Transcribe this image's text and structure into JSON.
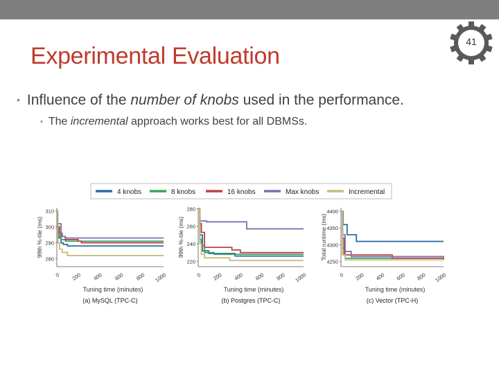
{
  "slide": {
    "title": "Experimental Evaluation",
    "number": "41",
    "bullet1": {
      "pre": "Influence of the ",
      "em": "number of knobs",
      "post": " used in the performance."
    },
    "bullet2": {
      "pre": "The ",
      "em": "incremental",
      "post": " approach works best for all DBMSs."
    }
  },
  "colors": {
    "title": "#c0392b",
    "topbar": "#7f7f7f",
    "gear": "#595959"
  },
  "legend": [
    {
      "name": "4 knobs",
      "color": "#2c6da6"
    },
    {
      "name": "8 knobs",
      "color": "#3aa35b"
    },
    {
      "name": "16 knobs",
      "color": "#b94444"
    },
    {
      "name": "Max knobs",
      "color": "#7a6fb0"
    },
    {
      "name": "Incremental",
      "color": "#c8bc7a"
    }
  ],
  "chart_data": [
    {
      "type": "line",
      "caption": "(a) MySQL (TPC-C)",
      "xlabel": "Tuning time (minutes)",
      "ylabel": "99th %-tile (ms)",
      "xlim": [
        0,
        1000
      ],
      "ylim": [
        275,
        312
      ],
      "xticks": [
        "0",
        "200",
        "400",
        "600",
        "800",
        "1000"
      ],
      "yticks": [
        {
          "v": 310,
          "t": "310"
        },
        {
          "v": 300,
          "t": "300"
        },
        {
          "v": 290,
          "t": "290"
        },
        {
          "v": 280,
          "t": "280"
        }
      ],
      "series": [
        {
          "name": "4 knobs",
          "x": [
            0,
            10,
            20,
            40,
            60,
            100,
            1000
          ],
          "y": [
            310,
            300,
            293,
            290,
            289,
            288,
            288
          ]
        },
        {
          "name": "8 knobs",
          "x": [
            0,
            10,
            25,
            40,
            80,
            1000
          ],
          "y": [
            310,
            298,
            294,
            292,
            291,
            291
          ]
        },
        {
          "name": "16 knobs",
          "x": [
            0,
            10,
            25,
            50,
            80,
            200,
            230,
            1000
          ],
          "y": [
            310,
            300,
            296,
            294,
            292,
            291,
            290,
            290
          ]
        },
        {
          "name": "Max knobs",
          "x": [
            0,
            10,
            40,
            80,
            1000
          ],
          "y": [
            310,
            302,
            294,
            293,
            293
          ]
        },
        {
          "name": "Incremental",
          "x": [
            0,
            10,
            25,
            50,
            100,
            1000
          ],
          "y": [
            310,
            290,
            286,
            284,
            282,
            282
          ]
        }
      ]
    },
    {
      "type": "line",
      "caption": "(b) Postgres (TPC-C)",
      "xlabel": "Tuning time (minutes)",
      "ylabel": "99th %-tile (ms)",
      "xlim": [
        0,
        1000
      ],
      "ylim": [
        214,
        281
      ],
      "xticks": [
        "0",
        "200",
        "400",
        "600",
        "800",
        "1000"
      ],
      "yticks": [
        {
          "v": 280,
          "t": "280"
        },
        {
          "v": 260,
          "t": "260"
        },
        {
          "v": 240,
          "t": "240"
        },
        {
          "v": 220,
          "t": "220"
        }
      ],
      "series": [
        {
          "name": "4 knobs",
          "x": [
            0,
            15,
            40,
            100,
            350,
            1000
          ],
          "y": [
            280,
            250,
            232,
            229,
            226,
            226
          ]
        },
        {
          "name": "8 knobs",
          "x": [
            0,
            15,
            30,
            60,
            150,
            1000
          ],
          "y": [
            280,
            245,
            238,
            230,
            228,
            228
          ]
        },
        {
          "name": "16 knobs",
          "x": [
            0,
            15,
            30,
            60,
            320,
            400,
            1000
          ],
          "y": [
            280,
            263,
            253,
            236,
            233,
            230,
            230
          ]
        },
        {
          "name": "Max knobs",
          "x": [
            0,
            15,
            80,
            460,
            1000
          ],
          "y": [
            280,
            266,
            265,
            257,
            257
          ]
        },
        {
          "name": "Incremental",
          "x": [
            0,
            15,
            30,
            60,
            300,
            1000
          ],
          "y": [
            280,
            240,
            228,
            224,
            221,
            221
          ]
        }
      ]
    },
    {
      "type": "line",
      "caption": "(c) Vector (TPC-H)",
      "xlabel": "Tuning time (minutes)",
      "ylabel": "Total runtime (ms)",
      "xlim": [
        0,
        1000
      ],
      "ylim": [
        4235,
        4410
      ],
      "xticks": [
        "0",
        "200",
        "400",
        "600",
        "800",
        "1000"
      ],
      "yticks": [
        {
          "v": 4400,
          "t": "4400"
        },
        {
          "v": 4350,
          "t": "4350"
        },
        {
          "v": 4300,
          "t": "4300"
        },
        {
          "v": 4250,
          "t": "4250"
        }
      ],
      "series": [
        {
          "name": "4 knobs",
          "x": [
            0,
            20,
            60,
            150,
            1000
          ],
          "y": [
            4400,
            4360,
            4330,
            4310,
            4310
          ]
        },
        {
          "name": "8 knobs",
          "x": [
            0,
            15,
            40,
            1000
          ],
          "y": [
            4400,
            4290,
            4260,
            4255
          ]
        },
        {
          "name": "16 knobs",
          "x": [
            0,
            15,
            30,
            500,
            1000
          ],
          "y": [
            4400,
            4320,
            4270,
            4260,
            4260
          ]
        },
        {
          "name": "Max knobs",
          "x": [
            0,
            15,
            40,
            100,
            1000
          ],
          "y": [
            4400,
            4330,
            4280,
            4265,
            4262
          ]
        },
        {
          "name": "Incremental",
          "x": [
            0,
            15,
            40,
            1000
          ],
          "y": [
            4400,
            4270,
            4255,
            4255
          ]
        }
      ]
    }
  ]
}
